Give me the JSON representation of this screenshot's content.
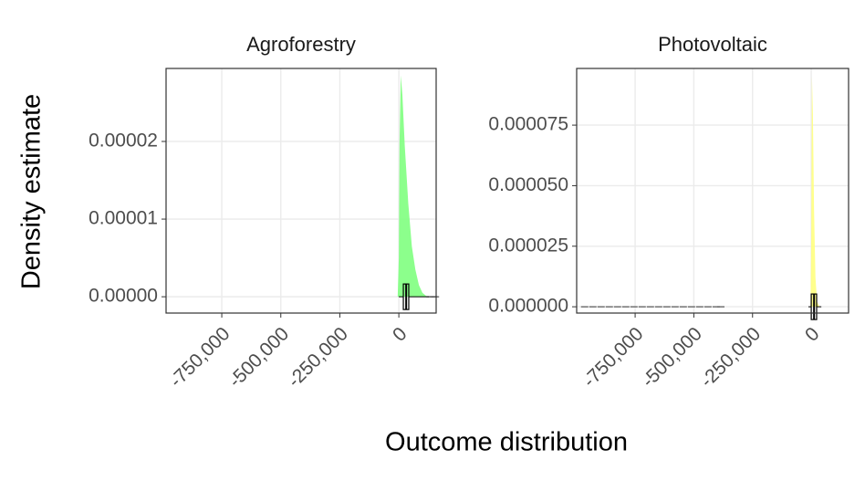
{
  "chart_data": [
    {
      "type": "area",
      "title": "Agroforestry",
      "color": "#80ff80",
      "x": [
        -5000,
        0,
        3000,
        8000,
        15000,
        25000,
        40000,
        55000,
        70000,
        85000,
        100000,
        120000
      ],
      "values": [
        0,
        5e-06,
        2e-05,
        2.85e-05,
        2.6e-05,
        1.95e-05,
        1.2e-05,
        6.5e-06,
        3.5e-06,
        1.5e-06,
        5e-07,
        0
      ],
      "boxplot": {
        "min": 0,
        "q1": 19000,
        "median": 31000,
        "q3": 42000,
        "max": 127000
      },
      "outliers": [
        132000,
        140000,
        148000,
        155000
      ],
      "xlim": [
        -986000,
        158000
      ],
      "ylim": [
        -2.1e-06,
        2.94e-05
      ],
      "xticks": [
        {
          "value": -750000,
          "label": "-750,000"
        },
        {
          "value": -500000,
          "label": "-500,000"
        },
        {
          "value": -250000,
          "label": "-250,000"
        },
        0
      ],
      "yticks": [
        {
          "value": 0,
          "label": "0.00000"
        },
        1e-05,
        2e-05
      ],
      "grid": true
    },
    {
      "type": "area",
      "title": "Photovoltaic",
      "color": "#ffff80",
      "x": [
        -3000,
        0,
        3000,
        7000,
        12000,
        18000,
        25000,
        35000
      ],
      "values": [
        0,
        3e-05,
        9.5e-05,
        8e-05,
        4e-05,
        1.2e-05,
        2e-06,
        0
      ],
      "boxplot": {
        "min": -12000,
        "q1": 0,
        "median": 12000,
        "q3": 23000,
        "max": 43000
      },
      "outliers": [
        -965000,
        -930000,
        -895000,
        -860000,
        -825000,
        -790000,
        -755000,
        -720000,
        -685000,
        -650000,
        -615000,
        -580000,
        -545000,
        -510000,
        -475000,
        -440000,
        -405000,
        -385000
      ],
      "xlim": [
        -999000,
        159000
      ],
      "ylim": [
        -2.6e-06,
        9.84e-05
      ],
      "xticks": [
        {
          "value": -750000,
          "label": "-750,000"
        },
        {
          "value": -500000,
          "label": "-500,000"
        },
        {
          "value": -250000,
          "label": "-250,000"
        },
        0
      ],
      "yticks": [
        {
          "value": 0,
          "label": "0.000000"
        },
        2.5e-05,
        {
          "value": 5e-05,
          "label": "0.000050"
        },
        7.5e-05
      ],
      "grid": true
    }
  ],
  "xlabel": "Outcome distribution",
  "ylabel": "Density estimate"
}
